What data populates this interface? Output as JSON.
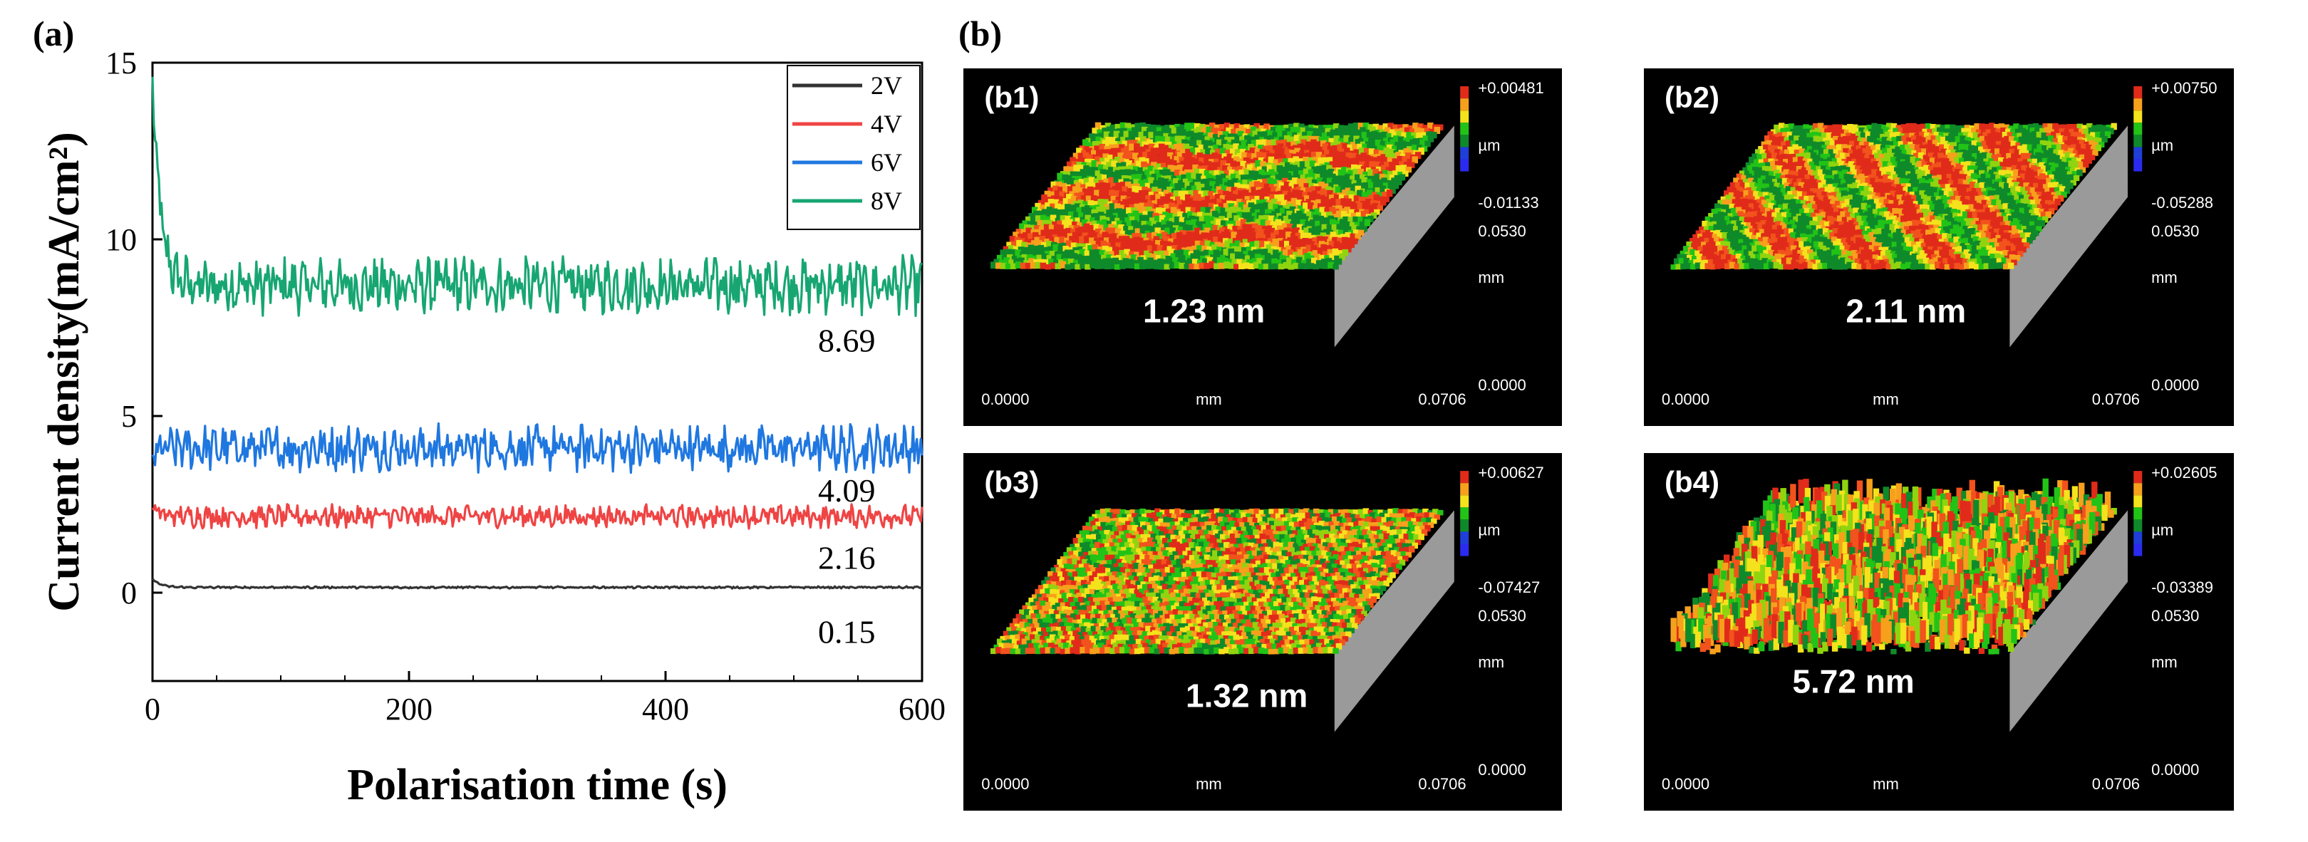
{
  "labels": {
    "panel_a": "(a)",
    "panel_b": "(b)"
  },
  "chart_data": {
    "type": "line",
    "xlabel": "Polarisation time (s)",
    "ylabel": "Current density(mA/cm²)",
    "xlim": [
      0,
      600
    ],
    "ylim": [
      -2.5,
      15
    ],
    "xticks": [
      0,
      200,
      400,
      600
    ],
    "yticks": [
      0,
      5,
      10,
      15
    ],
    "legend_position": "top-right",
    "series": [
      {
        "name": "2V",
        "color": "#333333",
        "start": 0.4,
        "mean": 0.15,
        "noise": 0.02,
        "annotation": "0.15"
      },
      {
        "name": "4V",
        "color": "#ef4444",
        "start": 2.4,
        "mean": 2.16,
        "noise": 0.22,
        "annotation": "2.16"
      },
      {
        "name": "6V",
        "color": "#1f77e0",
        "start": 3.9,
        "mean": 4.09,
        "noise": 0.45,
        "annotation": "4.09"
      },
      {
        "name": "8V",
        "color": "#17a672",
        "start": 14.6,
        "mean": 8.69,
        "noise": 0.55,
        "annotation": "8.69"
      }
    ]
  },
  "afm_panels": [
    {
      "label": "(b1)",
      "roughness": "1.23 nm",
      "zmax": "+0.00481",
      "zmin": "-0.01133",
      "unit": "µm",
      "depth": "0.0530",
      "zero": "0.0000",
      "axis_unit": "mm",
      "width": "0.0706"
    },
    {
      "label": "(b2)",
      "roughness": "2.11 nm",
      "zmax": "+0.00750",
      "zmin": "-0.05288",
      "unit": "µm",
      "depth": "0.0530",
      "zero": "0.0000",
      "axis_unit": "mm",
      "width": "0.0706"
    },
    {
      "label": "(b3)",
      "roughness": "1.32 nm",
      "zmax": "+0.00627",
      "zmin": "-0.07427",
      "unit": "µm",
      "depth": "0.0530",
      "zero": "0.0000",
      "axis_unit": "mm",
      "width": "0.0706"
    },
    {
      "label": "(b4)",
      "roughness": "5.72 nm",
      "zmax": "+0.02605",
      "zmin": "-0.03389",
      "unit": "µm",
      "depth": "0.0530",
      "zero": "0.0000",
      "axis_unit": "mm",
      "width": "0.0706"
    }
  ]
}
